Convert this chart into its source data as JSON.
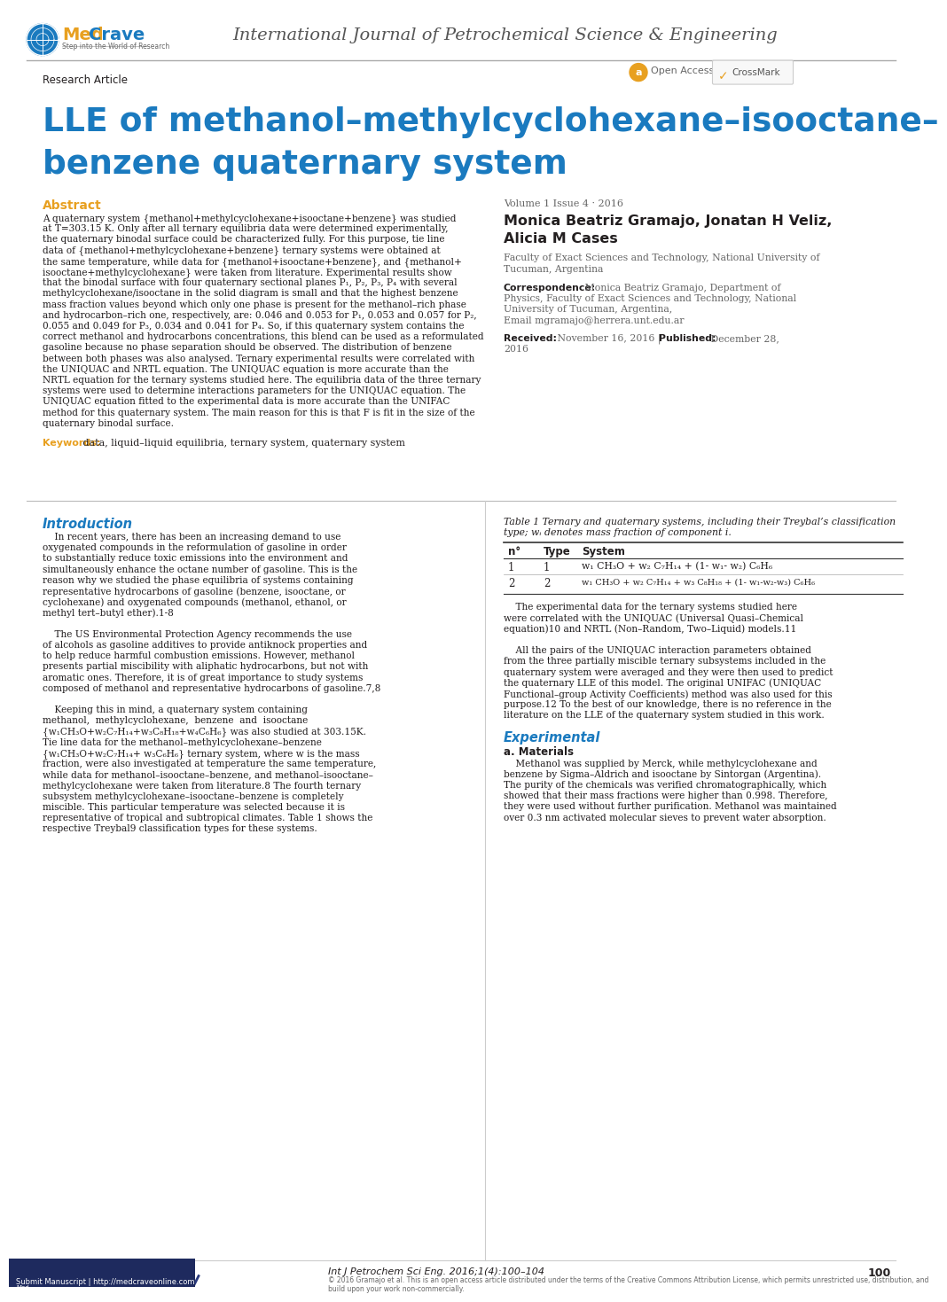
{
  "header_journal": "International Journal of Petrochemical Science & Engineering",
  "title_line1": "LLE of methanol–methylcyclohexane–isooctane–",
  "title_line2": "benzene quaternary system",
  "title_color": "#1a7abf",
  "abstract_title": "Abstract",
  "abstract_color": "#e8a020",
  "abstract_lines": [
    "A quaternary system {methanol+methylcyclohexane+isooctane+benzene} was studied",
    "at T=303.15 K. Only after all ternary equilibria data were determined experimentally,",
    "the quaternary binodal surface could be characterized fully. For this purpose, tie line",
    "data of {methanol+methylcyclohexane+benzene} ternary systems were obtained at",
    "the same temperature, while data for {methanol+isooctane+benzene}, and {methanol+",
    "isooctane+methylcyclohexane} were taken from literature. Experimental results show",
    "that the binodal surface with four quaternary sectional planes P₁, P₂, P₃, P₄ with several",
    "methylcyclohexane/isooctane in the solid diagram is small and that the highest benzene",
    "mass fraction values beyond which only one phase is present for the methanol–rich phase",
    "and hydrocarbon–rich one, respectively, are: 0.046 and 0.053 for P₁, 0.053 and 0.057 for P₂,",
    "0.055 and 0.049 for P₃, 0.034 and 0.041 for P₄. So, if this quaternary system contains the",
    "correct methanol and hydrocarbons concentrations, this blend can be used as a reformulated",
    "gasoline because no phase separation should be observed. The distribution of benzene",
    "between both phases was also analysed. Ternary experimental results were correlated with",
    "the UNIQUAC and NRTL equation. The UNIQUAC equation is more accurate than the",
    "NRTL equation for the ternary systems studied here. The equilibria data of the three ternary",
    "systems were used to determine interactions parameters for the UNIQUAC equation. The",
    "UNIQUAC equation fitted to the experimental data is more accurate than the UNIFAC",
    "method for this quaternary system. The main reason for this is that F is fit in the size of the",
    "quaternary binodal surface."
  ],
  "keywords_label": "Keywords:",
  "keywords_text": " data, liquid–liquid equilibria, ternary system, quaternary system",
  "volume_info": "Volume 1 Issue 4 · 2016",
  "author_names_line1": "Monica Beatriz Gramajo, Jonatan H Veliz,",
  "author_names_line2": "Alicia M Cases",
  "author_affiliation_line1": "Faculty of Exact Sciences and Technology, National University of",
  "author_affiliation_line2": "Tucuman, Argentina",
  "correspondence_label": "Correspondence:",
  "correspondence_lines": [
    " Monica Beatriz Gramajo, Department of",
    "Physics, Faculty of Exact Sciences and Technology, National",
    "University of Tucuman, Argentina,",
    "Email mgramajo@herrera.unt.edu.ar"
  ],
  "received_label": "Received:",
  "received_text": " November 16, 2016 | ",
  "published_label": "Published:",
  "published_text": " December 28,",
  "published_text2": "2016",
  "intro_title": "Introduction",
  "intro_lines_left": [
    "    In recent years, there has been an increasing demand to use",
    "oxygenated compounds in the reformulation of gasoline in order",
    "to substantially reduce toxic emissions into the environment and",
    "simultaneously enhance the octane number of gasoline. This is the",
    "reason why we studied the phase equilibria of systems containing",
    "representative hydrocarbons of gasoline (benzene, isooctane, or",
    "cyclohexane) and oxygenated compounds (methanol, ethanol, or",
    "methyl tert–butyl ether).1-8",
    "",
    "    The US Environmental Protection Agency recommends the use",
    "of alcohols as gasoline additives to provide antiknock properties and",
    "to help reduce harmful combustion emissions. However, methanol",
    "presents partial miscibility with aliphatic hydrocarbons, but not with",
    "aromatic ones. Therefore, it is of great importance to study systems",
    "composed of methanol and representative hydrocarbons of gasoline.7,8",
    "",
    "    Keeping this in mind, a quaternary system containing",
    "methanol,  methylcyclohexane,  benzene  and  isooctane",
    "{w₁CH₃O+w₂C₇H₁₄+w₃C₈H₁₈+w₄C₆H₆} was also studied at 303.15K.",
    "Tie line data for the methanol–methylcyclohexane–benzene",
    "{w₁CH₃O+w₂C₇H₁₄+ w₃C₆H₆} ternary system, where w is the mass",
    "fraction, were also investigated at temperature the same temperature,",
    "while data for methanol–isooctane–benzene, and methanol–isooctane–",
    "methylcyclohexane were taken from literature.8 The fourth ternary",
    "subsystem methylcyclohexane–isooctane–benzene is completely",
    "miscible. This particular temperature was selected because it is",
    "representative of tropical and subtropical climates. Table 1 shows the",
    "respective Treybal9 classification types for these systems."
  ],
  "table_title_line1": "Table 1 Ternary and quaternary systems, including their Treybal’s classification",
  "table_title_line2": "type; wᵢ denotes mass fraction of component i.",
  "table_col1_header": "n°",
  "table_col2_header": "Type",
  "table_col3_header": "System",
  "table_row1": [
    "1",
    "1",
    "w₁ CH₃O + w₂ C₇H₁₄ + (1- w₁- w₂) C₆H₆"
  ],
  "table_row2": [
    "2",
    "2",
    "w₁ CH₃O + w₂ C₇H₁₄ + w₃ C₈H₁₈ + (1- w₁-w₂-w₃) C₆H₆"
  ],
  "right_col_lines": [
    "    The experimental data for the ternary systems studied here",
    "were correlated with the UNIQUAC (Universal Quasi–Chemical",
    "equation)10 and NRTL (Non–Random, Two–Liquid) models.11",
    "",
    "    All the pairs of the UNIQUAC interaction parameters obtained",
    "from the three partially miscible ternary subsystems included in the",
    "quaternary system were averaged and they were then used to predict",
    "the quaternary LLE of this model. The original UNIFAC (UNIQUAC",
    "Functional–group Activity Coefficients) method was also used for this",
    "purpose.12 To the best of our knowledge, there is no reference in the",
    "literature on the LLE of the quaternary system studied in this work."
  ],
  "experimental_title": "Experimental",
  "materials_subtitle": "a. Materials",
  "materials_lines": [
    "    Methanol was supplied by Merck, while methylcyclohexane and",
    "benzene by Sigma–Aldrich and isooctane by Sintorgan (Argentina).",
    "The purity of the chemicals was verified chromatographically, which",
    "showed that their mass fractions were higher than 0.998. Therefore,",
    "they were used without further purification. Methanol was maintained",
    "over 0.3 nm activated molecular sieves to prevent water absorption."
  ],
  "footer_left": "Submit Manuscript | http://medcraveonline.com",
  "footer_journal": "Int J Petrochem Sci Eng. 2016;1(4):100–104",
  "footer_cc": "© 2016 Gramajo et al. This is an open access article distributed under the terms of the Creative Commons Attribution License, which permits unrestricted use, distribution, and build upon your work non-commercially.",
  "footer_page": "100",
  "bg_color": "#ffffff",
  "text_color": "#231f20",
  "gray_color": "#666666",
  "orange_color": "#e8a020",
  "blue_color": "#1a7abf"
}
